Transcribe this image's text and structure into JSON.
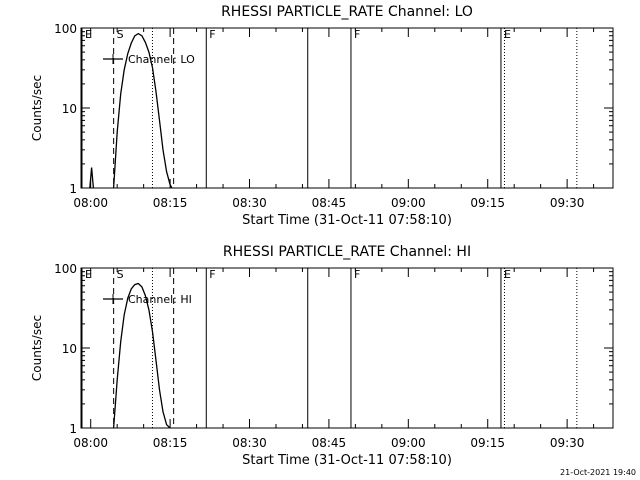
{
  "chart_data": [
    {
      "type": "line",
      "title": "RHESSI PARTICLE_RATE Channel: LO",
      "xlabel": "Start Time (31-Oct-11 07:58:10)",
      "ylabel": "Counts/sec",
      "y_scale": "log",
      "ylim": [
        1,
        100
      ],
      "xlim": [
        "07:58:10",
        "09:38:40"
      ],
      "x_ticks": [
        "08:00",
        "08:15",
        "08:30",
        "08:45",
        "09:00",
        "09:15",
        "09:30"
      ],
      "y_ticks": [
        "1",
        "10",
        "100"
      ],
      "legend": {
        "label": "Channel: LO",
        "placement": "top-left"
      },
      "markers": [
        {
          "label": "E",
          "time": "07:58:10",
          "style": "solid"
        },
        {
          "label": "S",
          "time": "08:04:20",
          "style": "dashed"
        },
        {
          "label": "",
          "time": "08:11:40",
          "style": "dotted"
        },
        {
          "label": "",
          "time": "08:15:40",
          "style": "dashed"
        },
        {
          "label": "F",
          "time": "08:21:50",
          "style": "solid"
        },
        {
          "label": "",
          "time": "08:41:00",
          "style": "solid"
        },
        {
          "label": "F",
          "time": "08:49:10",
          "style": "solid"
        },
        {
          "label": "E",
          "time": "09:17:30",
          "style": "solid"
        },
        {
          "label": "",
          "time": "09:18:10",
          "style": "dotted"
        },
        {
          "label": "",
          "time": "09:31:50",
          "style": "dotted"
        }
      ],
      "series": [
        {
          "segments": [
            {
              "x": [
                "07:59:50",
                "08:00:10",
                "08:00:30"
              ],
              "y": [
                1,
                1.8,
                1
              ]
            },
            {
              "x": [
                "08:04:20",
                "08:05:00",
                "08:05:40",
                "08:06:20",
                "08:07:00",
                "08:07:40",
                "08:08:20",
                "08:09:00",
                "08:09:40",
                "08:10:20",
                "08:11:00",
                "08:11:40",
                "08:12:20",
                "08:13:00",
                "08:13:40",
                "08:14:20",
                "08:15:00",
                "08:15:20"
              ],
              "y": [
                1,
                5,
                15,
                30,
                48,
                65,
                80,
                85,
                80,
                66,
                50,
                32,
                16,
                7,
                3,
                1.6,
                1.1,
                1
              ]
            }
          ]
        }
      ]
    },
    {
      "type": "line",
      "title": "RHESSI PARTICLE_RATE Channel: HI",
      "xlabel": "Start Time (31-Oct-11 07:58:10)",
      "ylabel": "Counts/sec",
      "y_scale": "log",
      "ylim": [
        1,
        100
      ],
      "xlim": [
        "07:58:10",
        "09:38:40"
      ],
      "x_ticks": [
        "08:00",
        "08:15",
        "08:30",
        "08:45",
        "09:00",
        "09:15",
        "09:30"
      ],
      "y_ticks": [
        "1",
        "10",
        "100"
      ],
      "legend": {
        "label": "Channel: HI",
        "placement": "top-left"
      },
      "markers": [
        {
          "label": "E",
          "time": "07:58:10",
          "style": "solid"
        },
        {
          "label": "S",
          "time": "08:04:20",
          "style": "dashed"
        },
        {
          "label": "",
          "time": "08:11:40",
          "style": "dotted"
        },
        {
          "label": "",
          "time": "08:15:40",
          "style": "dashed"
        },
        {
          "label": "F",
          "time": "08:21:50",
          "style": "solid"
        },
        {
          "label": "",
          "time": "08:41:00",
          "style": "solid"
        },
        {
          "label": "F",
          "time": "08:49:10",
          "style": "solid"
        },
        {
          "label": "E",
          "time": "09:17:30",
          "style": "solid"
        },
        {
          "label": "",
          "time": "09:18:10",
          "style": "dotted"
        },
        {
          "label": "",
          "time": "09:31:50",
          "style": "dotted"
        }
      ],
      "series": [
        {
          "segments": [
            {
              "x": [
                "08:04:20",
                "08:05:00",
                "08:05:40",
                "08:06:20",
                "08:07:00",
                "08:07:40",
                "08:08:20",
                "08:09:00",
                "08:09:40",
                "08:10:20",
                "08:11:00",
                "08:11:40",
                "08:12:20",
                "08:13:00",
                "08:13:40",
                "08:14:20",
                "08:15:00"
              ],
              "y": [
                1,
                4,
                12,
                26,
                42,
                55,
                62,
                64,
                58,
                45,
                30,
                16,
                7,
                3,
                1.6,
                1.1,
                1
              ]
            }
          ]
        }
      ]
    }
  ],
  "footer": {
    "timestamp": "21-Oct-2021 19:40"
  }
}
